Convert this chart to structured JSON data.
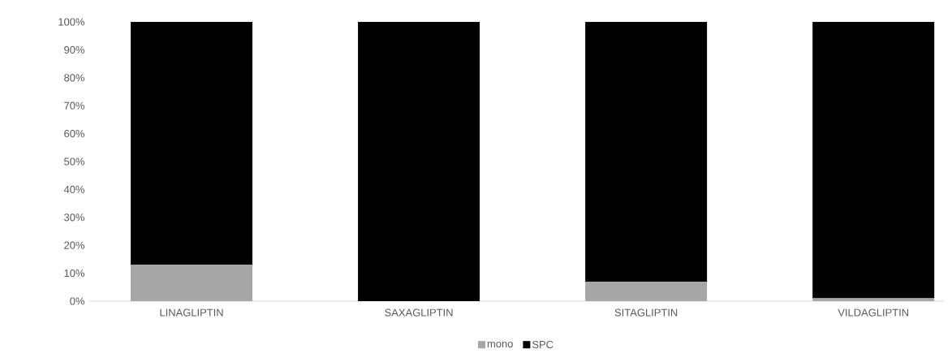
{
  "chart_data": {
    "type": "bar",
    "stacked": true,
    "categories": [
      "LINAGLIPTIN",
      "SAXAGLIPTIN",
      "SITAGLIPTIN",
      "VILDAGLIPTIN"
    ],
    "series": [
      {
        "name": "mono",
        "color": "#a6a6a6",
        "values": [
          13,
          0,
          7,
          1
        ]
      },
      {
        "name": "SPC",
        "color": "#000000",
        "values": [
          87,
          100,
          93,
          99
        ]
      }
    ],
    "ylim": [
      0,
      100
    ],
    "yticks": [
      {
        "value": 0,
        "label": "0%"
      },
      {
        "value": 10,
        "label": "10%"
      },
      {
        "value": 20,
        "label": "20%"
      },
      {
        "value": 30,
        "label": "30%"
      },
      {
        "value": 40,
        "label": "40%"
      },
      {
        "value": 50,
        "label": "50%"
      },
      {
        "value": 60,
        "label": "60%"
      },
      {
        "value": 70,
        "label": "70%"
      },
      {
        "value": 80,
        "label": "80%"
      },
      {
        "value": 90,
        "label": "90%"
      },
      {
        "value": 100,
        "label": "100%"
      }
    ],
    "legend": "bottom"
  }
}
